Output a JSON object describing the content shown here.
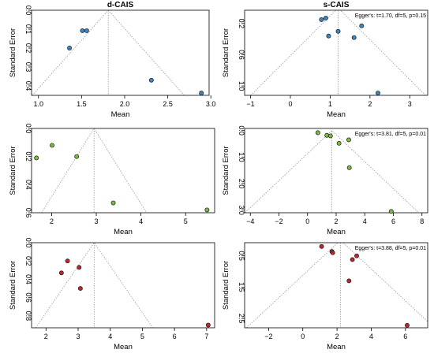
{
  "chart_data": [
    {
      "type": "scatter",
      "title": "d-CAIS",
      "annotation": "",
      "xlabel": "Mean",
      "ylabel": "Standard Error",
      "xlim": [
        0.92,
        2.98
      ],
      "ylim": [
        0.0,
        0.45
      ],
      "y_reversed": true,
      "xticks": [
        1.0,
        1.5,
        2.0,
        2.5,
        3.0
      ],
      "xtick_labels": [
        "1.0",
        "1.5",
        "2.0",
        "2.5",
        "3.0"
      ],
      "yticks": [
        0.0,
        0.1,
        0.2,
        0.3,
        0.4
      ],
      "ytick_labels": [
        "0.0",
        "0.1",
        "0.2",
        "0.3",
        "0.4"
      ],
      "center": 1.81,
      "point_color": "#3a87c8",
      "points": [
        {
          "x": 1.51,
          "y": 0.108
        },
        {
          "x": 1.56,
          "y": 0.108
        },
        {
          "x": 1.36,
          "y": 0.2
        },
        {
          "x": 2.31,
          "y": 0.37
        },
        {
          "x": 2.89,
          "y": 0.438
        }
      ]
    },
    {
      "type": "scatter",
      "title": "s-CAIS",
      "annotation": "Egger's: t=1.70, df=5, p=0.15",
      "xlabel": "Mean",
      "ylabel": "Standard Error",
      "xlim": [
        -1.15,
        3.45
      ],
      "ylim": [
        0.03,
        1.12
      ],
      "y_reversed": true,
      "xticks": [
        -1,
        0,
        1,
        2,
        3
      ],
      "xtick_labels": [
        "−1",
        "0",
        "1",
        "2",
        "3"
      ],
      "yticks": [
        0.2,
        0.6,
        1.0
      ],
      "ytick_labels": [
        "0.2",
        "0.6",
        "1.0"
      ],
      "center": 1.2,
      "point_color": "#3a87c8",
      "points": [
        {
          "x": 0.78,
          "y": 0.15
        },
        {
          "x": 0.89,
          "y": 0.13
        },
        {
          "x": 1.79,
          "y": 0.23
        },
        {
          "x": 1.2,
          "y": 0.3
        },
        {
          "x": 0.96,
          "y": 0.36
        },
        {
          "x": 1.6,
          "y": 0.38
        },
        {
          "x": 2.2,
          "y": 1.09
        }
      ]
    },
    {
      "type": "scatter",
      "title": "",
      "annotation": "",
      "xlabel": "Mean",
      "ylabel": "Standard Error",
      "xlim": [
        1.55,
        5.65
      ],
      "ylim": [
        0.0,
        0.6
      ],
      "y_reversed": true,
      "xticks": [
        2,
        3,
        4,
        5
      ],
      "xtick_labels": [
        "2",
        "3",
        "4",
        "5"
      ],
      "yticks": [
        0.0,
        0.2,
        0.4,
        0.6
      ],
      "ytick_labels": [
        "0.0",
        "0.2",
        "0.4",
        "0.6"
      ],
      "center": 2.95,
      "point_color": "#7cbb3e",
      "points": [
        {
          "x": 2.01,
          "y": 0.12
        },
        {
          "x": 1.66,
          "y": 0.21
        },
        {
          "x": 2.56,
          "y": 0.2
        },
        {
          "x": 3.38,
          "y": 0.53
        },
        {
          "x": 5.48,
          "y": 0.58
        }
      ]
    },
    {
      "type": "scatter",
      "title": "",
      "annotation": "Egger's: t=3.81, df=5, p=0.01",
      "xlabel": "Mean",
      "ylabel": "Standard Error",
      "xlim": [
        -4.4,
        8.4
      ],
      "ylim": [
        -0.08,
        3.1
      ],
      "y_reversed": true,
      "xticks": [
        -4,
        -2,
        0,
        2,
        4,
        6,
        8
      ],
      "xtick_labels": [
        "−4",
        "−2",
        "0",
        "2",
        "4",
        "6",
        "8"
      ],
      "yticks": [
        0.0,
        1.0,
        2.0,
        3.0
      ],
      "ytick_labels": [
        "0.0",
        "1.0",
        "2.0",
        "3.0"
      ],
      "center": 1.7,
      "point_color": "#7cbb3e",
      "points": [
        {
          "x": 0.72,
          "y": 0.08
        },
        {
          "x": 1.35,
          "y": 0.18
        },
        {
          "x": 1.6,
          "y": 0.2
        },
        {
          "x": 2.2,
          "y": 0.48
        },
        {
          "x": 2.88,
          "y": 0.35
        },
        {
          "x": 2.92,
          "y": 1.4
        },
        {
          "x": 5.85,
          "y": 3.05
        }
      ]
    },
    {
      "type": "scatter",
      "title": "",
      "annotation": "",
      "xlabel": "Mean",
      "ylabel": "Standard Error",
      "xlim": [
        1.55,
        7.25
      ],
      "ylim": [
        0.0,
        0.93
      ],
      "y_reversed": true,
      "xticks": [
        2,
        3,
        4,
        5,
        6,
        7
      ],
      "xtick_labels": [
        "2",
        "3",
        "4",
        "5",
        "6",
        "7"
      ],
      "yticks": [
        0.0,
        0.2,
        0.4,
        0.6,
        0.8
      ],
      "ytick_labels": [
        "0.0",
        "0.2",
        "0.4",
        "0.6",
        "0.8"
      ],
      "center": 3.5,
      "point_color": "#c0272d",
      "points": [
        {
          "x": 2.67,
          "y": 0.2
        },
        {
          "x": 2.48,
          "y": 0.33
        },
        {
          "x": 3.03,
          "y": 0.27
        },
        {
          "x": 3.07,
          "y": 0.5
        },
        {
          "x": 7.05,
          "y": 0.9
        }
      ]
    },
    {
      "type": "scatter",
      "title": "",
      "annotation": "Egger's: t=3.88, df=5, p=0.01",
      "xlabel": "Mean",
      "ylabel": "Standard Error",
      "xlim": [
        -3.4,
        7.3
      ],
      "ylim": [
        0.08,
        2.8
      ],
      "y_reversed": true,
      "xticks": [
        -2,
        0,
        2,
        4,
        6
      ],
      "xtick_labels": [
        "−2",
        "0",
        "2",
        "4",
        "6"
      ],
      "yticks": [
        0.5,
        1.5,
        2.5
      ],
      "ytick_labels": [
        "0.5",
        "1.5",
        "2.5"
      ],
      "center": 2.2,
      "point_color": "#c0272d",
      "points": [
        {
          "x": 1.1,
          "y": 0.2
        },
        {
          "x": 1.7,
          "y": 0.36
        },
        {
          "x": 1.75,
          "y": 0.4
        },
        {
          "x": 3.15,
          "y": 0.5
        },
        {
          "x": 2.9,
          "y": 0.62
        },
        {
          "x": 2.7,
          "y": 1.3
        },
        {
          "x": 6.1,
          "y": 2.72
        }
      ]
    }
  ]
}
